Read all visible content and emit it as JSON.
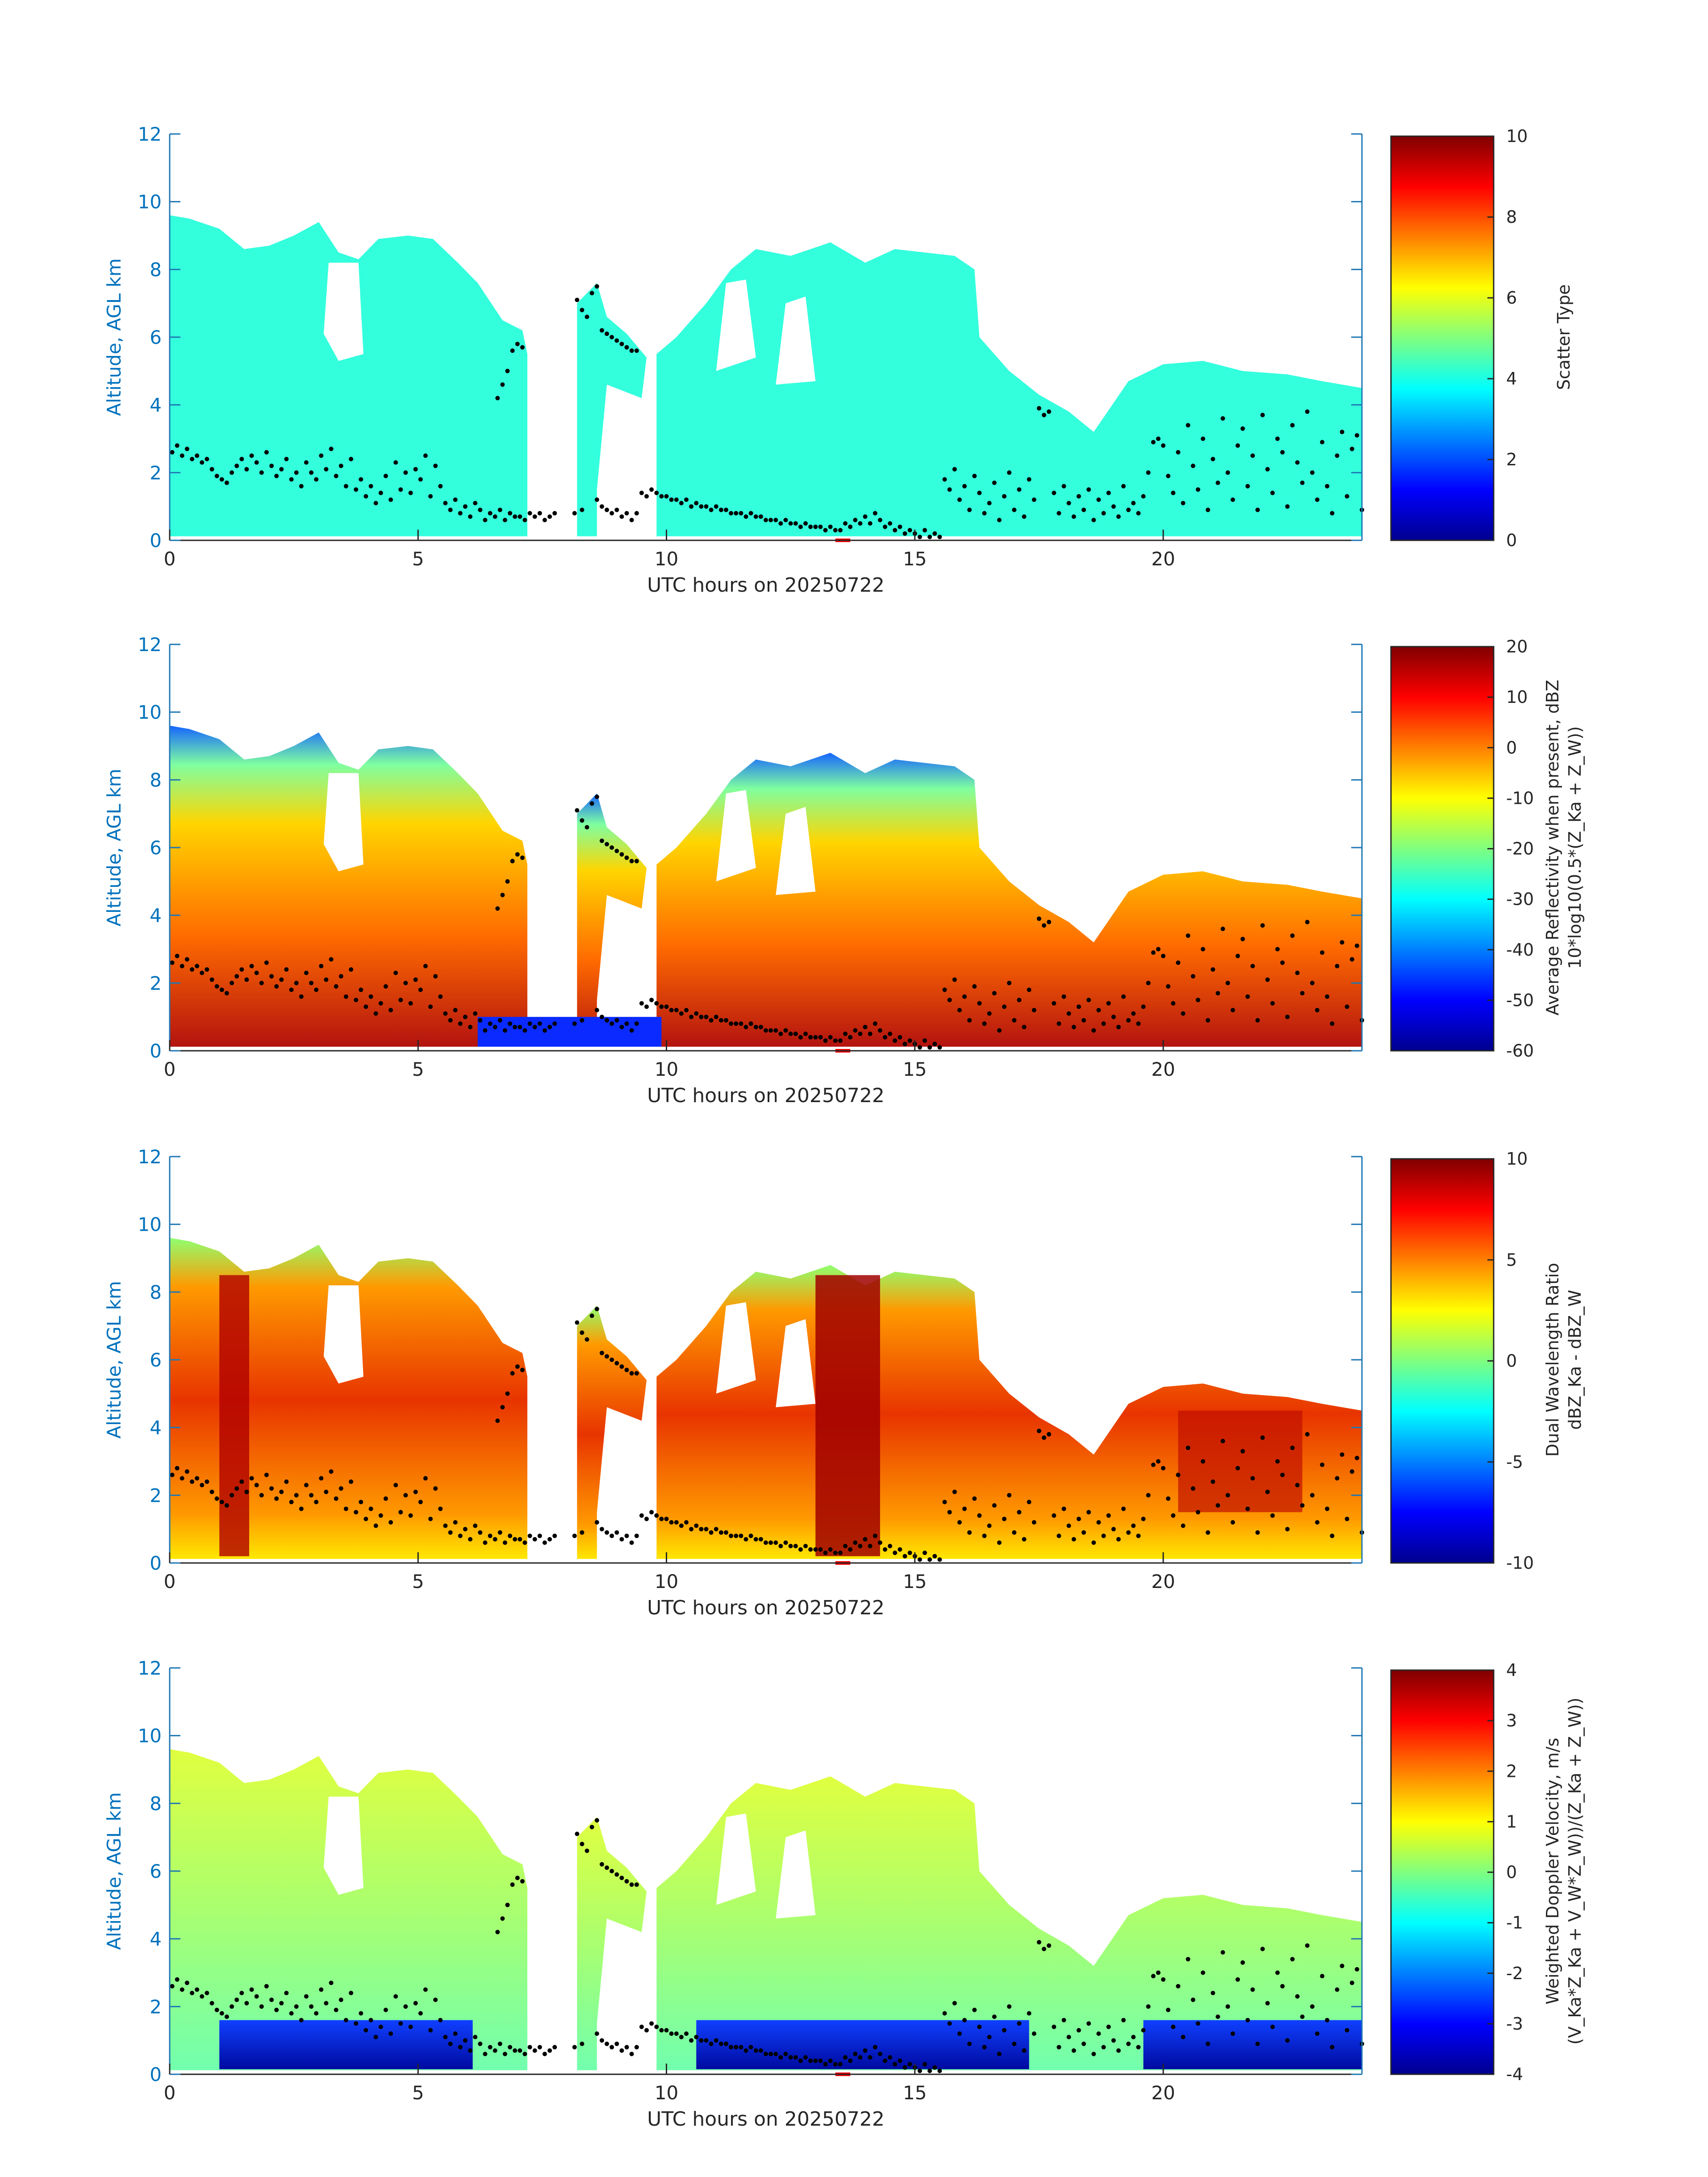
{
  "chart_data": [
    {
      "type": "heatmap",
      "xlabel": "UTC hours on 20250722",
      "ylabel": "Altitude, AGL km",
      "xlim": [
        0,
        24
      ],
      "ylim": [
        0,
        12
      ],
      "xticks": [
        "0",
        "5",
        "10",
        "15",
        "20"
      ],
      "yticks": [
        "0",
        "2",
        "4",
        "6",
        "8",
        "10",
        "12"
      ],
      "colorbar": {
        "label_lines": [
          "Scatter Type"
        ],
        "ticks": [
          "0",
          "2",
          "4",
          "6",
          "8",
          "10"
        ],
        "range": [
          0,
          10
        ],
        "colormap": "jet"
      },
      "dominant_value": 4
    },
    {
      "type": "heatmap",
      "xlabel": "UTC hours on 20250722",
      "ylabel": "Altitude, AGL km",
      "xlim": [
        0,
        24
      ],
      "ylim": [
        0,
        12
      ],
      "xticks": [
        "0",
        "5",
        "10",
        "15",
        "20"
      ],
      "yticks": [
        "0",
        "2",
        "4",
        "6",
        "8",
        "10",
        "12"
      ],
      "colorbar": {
        "label_lines": [
          "Average Reflectivity when present, dBZ",
          "10*log10(0.5*(Z_Ka + Z_W))"
        ],
        "ticks": [
          "-60",
          "-50",
          "-40",
          "-30",
          "-20",
          "-10",
          "0",
          "10",
          "20"
        ],
        "range": [
          -60,
          20
        ],
        "colormap": "jet"
      }
    },
    {
      "type": "heatmap",
      "xlabel": "UTC hours on 20250722",
      "ylabel": "Altitude, AGL km",
      "xlim": [
        0,
        24
      ],
      "ylim": [
        0,
        12
      ],
      "xticks": [
        "0",
        "5",
        "10",
        "15",
        "20"
      ],
      "yticks": [
        "0",
        "2",
        "4",
        "6",
        "8",
        "10",
        "12"
      ],
      "colorbar": {
        "label_lines": [
          "Dual Wavelength Ratio",
          "dBZ_Ka - dBZ_W"
        ],
        "ticks": [
          "-10",
          "-5",
          "0",
          "5",
          "10"
        ],
        "range": [
          -10,
          10
        ],
        "colormap": "jet"
      }
    },
    {
      "type": "heatmap",
      "xlabel": "UTC hours on 20250722",
      "ylabel": "Altitude, AGL km",
      "xlim": [
        0,
        24
      ],
      "ylim": [
        0,
        12
      ],
      "xticks": [
        "0",
        "5",
        "10",
        "15",
        "20"
      ],
      "yticks": [
        "0",
        "2",
        "4",
        "6",
        "8",
        "10",
        "12"
      ],
      "colorbar": {
        "label_lines": [
          "Weighted Doppler Velocity, m/s",
          "(V_Ka*Z_Ka + V_W*Z_W))/(Z_Ka + Z_W))"
        ],
        "ticks": [
          "-4",
          "-3",
          "-2",
          "-1",
          "0",
          "1",
          "2",
          "3",
          "4"
        ],
        "range": [
          -4,
          4
        ],
        "colormap": "jet"
      }
    }
  ],
  "cloud_base_points": [
    [
      0.05,
      2.6
    ],
    [
      0.15,
      2.8
    ],
    [
      0.25,
      2.5
    ],
    [
      0.35,
      2.7
    ],
    [
      0.45,
      2.4
    ],
    [
      0.55,
      2.5
    ],
    [
      0.65,
      2.3
    ],
    [
      0.75,
      2.4
    ],
    [
      0.85,
      2.1
    ],
    [
      0.95,
      1.9
    ],
    [
      1.05,
      1.8
    ],
    [
      1.15,
      1.7
    ],
    [
      1.25,
      2.0
    ],
    [
      1.35,
      2.2
    ],
    [
      1.45,
      2.4
    ],
    [
      1.55,
      2.1
    ],
    [
      1.65,
      2.5
    ],
    [
      1.75,
      2.3
    ],
    [
      1.85,
      2.0
    ],
    [
      1.95,
      2.6
    ],
    [
      2.05,
      2.2
    ],
    [
      2.15,
      1.9
    ],
    [
      2.25,
      2.1
    ],
    [
      2.35,
      2.4
    ],
    [
      2.45,
      1.8
    ],
    [
      2.55,
      2.0
    ],
    [
      2.65,
      1.6
    ],
    [
      2.75,
      2.3
    ],
    [
      2.85,
      2.0
    ],
    [
      2.95,
      1.8
    ],
    [
      3.05,
      2.5
    ],
    [
      3.15,
      2.1
    ],
    [
      3.25,
      2.7
    ],
    [
      3.35,
      1.9
    ],
    [
      3.45,
      2.2
    ],
    [
      3.55,
      1.6
    ],
    [
      3.65,
      2.4
    ],
    [
      3.75,
      1.5
    ],
    [
      3.85,
      1.8
    ],
    [
      3.95,
      1.3
    ],
    [
      4.05,
      1.6
    ],
    [
      4.15,
      1.1
    ],
    [
      4.25,
      1.4
    ],
    [
      4.35,
      1.9
    ],
    [
      4.45,
      1.2
    ],
    [
      4.55,
      2.3
    ],
    [
      4.65,
      1.5
    ],
    [
      4.75,
      2.0
    ],
    [
      4.85,
      1.4
    ],
    [
      4.95,
      2.1
    ],
    [
      5.05,
      1.8
    ],
    [
      5.15,
      2.5
    ],
    [
      5.25,
      1.3
    ],
    [
      5.35,
      2.2
    ],
    [
      5.45,
      1.6
    ],
    [
      5.55,
      1.1
    ],
    [
      5.65,
      0.9
    ],
    [
      5.75,
      1.2
    ],
    [
      5.85,
      0.8
    ],
    [
      5.95,
      1.0
    ],
    [
      6.05,
      0.7
    ],
    [
      6.15,
      1.1
    ],
    [
      6.25,
      0.9
    ],
    [
      6.35,
      0.6
    ],
    [
      6.45,
      0.8
    ],
    [
      6.55,
      0.7
    ],
    [
      6.65,
      0.9
    ],
    [
      6.75,
      0.6
    ],
    [
      6.85,
      0.8
    ],
    [
      6.95,
      0.7
    ],
    [
      7.05,
      0.7
    ],
    [
      7.15,
      0.6
    ],
    [
      7.25,
      0.8
    ],
    [
      7.35,
      0.7
    ],
    [
      7.45,
      0.8
    ],
    [
      7.55,
      0.6
    ],
    [
      7.65,
      0.7
    ],
    [
      7.75,
      0.8
    ],
    [
      8.15,
      0.8
    ],
    [
      8.3,
      0.9
    ],
    [
      8.6,
      1.2
    ],
    [
      8.7,
      1.0
    ],
    [
      8.8,
      0.9
    ],
    [
      8.9,
      0.8
    ],
    [
      9.0,
      0.9
    ],
    [
      9.1,
      0.7
    ],
    [
      9.2,
      0.8
    ],
    [
      9.3,
      0.6
    ],
    [
      9.4,
      0.8
    ],
    [
      9.5,
      1.4
    ],
    [
      9.6,
      1.3
    ],
    [
      9.7,
      1.5
    ],
    [
      9.8,
      1.4
    ],
    [
      9.9,
      1.3
    ],
    [
      10.0,
      1.3
    ],
    [
      10.1,
      1.2
    ],
    [
      10.2,
      1.2
    ],
    [
      10.3,
      1.1
    ],
    [
      10.4,
      1.2
    ],
    [
      10.5,
      1.0
    ],
    [
      10.6,
      1.1
    ],
    [
      10.7,
      1.0
    ],
    [
      10.8,
      1.0
    ],
    [
      10.9,
      0.9
    ],
    [
      11.0,
      1.0
    ],
    [
      11.1,
      0.9
    ],
    [
      11.2,
      0.9
    ],
    [
      11.3,
      0.8
    ],
    [
      11.4,
      0.8
    ],
    [
      11.5,
      0.8
    ],
    [
      11.6,
      0.7
    ],
    [
      11.7,
      0.8
    ],
    [
      11.8,
      0.7
    ],
    [
      11.9,
      0.7
    ],
    [
      12.0,
      0.6
    ],
    [
      12.1,
      0.6
    ],
    [
      12.2,
      0.6
    ],
    [
      12.3,
      0.5
    ],
    [
      12.4,
      0.6
    ],
    [
      12.5,
      0.5
    ],
    [
      12.6,
      0.5
    ],
    [
      12.7,
      0.4
    ],
    [
      12.8,
      0.5
    ],
    [
      12.9,
      0.4
    ],
    [
      13.0,
      0.4
    ],
    [
      13.1,
      0.4
    ],
    [
      13.2,
      0.3
    ],
    [
      13.3,
      0.4
    ],
    [
      13.4,
      0.3
    ],
    [
      13.5,
      0.3
    ],
    [
      13.6,
      0.5
    ],
    [
      13.7,
      0.4
    ],
    [
      13.8,
      0.6
    ],
    [
      13.9,
      0.5
    ],
    [
      14.0,
      0.7
    ],
    [
      14.1,
      0.5
    ],
    [
      14.2,
      0.8
    ],
    [
      14.3,
      0.6
    ],
    [
      14.4,
      0.4
    ],
    [
      14.5,
      0.5
    ],
    [
      14.6,
      0.3
    ],
    [
      14.7,
      0.4
    ],
    [
      14.8,
      0.2
    ],
    [
      14.9,
      0.3
    ],
    [
      15.0,
      0.2
    ],
    [
      15.1,
      0.1
    ],
    [
      15.2,
      0.3
    ],
    [
      15.3,
      0.1
    ],
    [
      15.4,
      0.2
    ],
    [
      15.5,
      0.1
    ],
    [
      15.6,
      1.8
    ],
    [
      15.7,
      1.5
    ],
    [
      15.8,
      2.1
    ],
    [
      15.9,
      1.2
    ],
    [
      16.0,
      1.6
    ],
    [
      16.1,
      0.9
    ],
    [
      16.2,
      1.9
    ],
    [
      16.3,
      1.4
    ],
    [
      16.4,
      0.8
    ],
    [
      16.5,
      1.1
    ],
    [
      16.6,
      1.7
    ],
    [
      16.7,
      0.6
    ],
    [
      16.8,
      1.3
    ],
    [
      16.9,
      2.0
    ],
    [
      17.0,
      0.9
    ],
    [
      17.1,
      1.5
    ],
    [
      17.2,
      0.7
    ],
    [
      17.3,
      1.8
    ],
    [
      17.4,
      1.2
    ],
    [
      17.5,
      3.9
    ],
    [
      17.6,
      3.7
    ],
    [
      17.7,
      3.8
    ],
    [
      17.8,
      1.4
    ],
    [
      17.9,
      0.8
    ],
    [
      18.0,
      1.6
    ],
    [
      18.1,
      1.1
    ],
    [
      18.2,
      0.7
    ],
    [
      18.3,
      1.3
    ],
    [
      18.4,
      0.9
    ],
    [
      18.5,
      1.5
    ],
    [
      18.6,
      0.6
    ],
    [
      18.7,
      1.2
    ],
    [
      18.8,
      0.8
    ],
    [
      18.9,
      1.4
    ],
    [
      19.0,
      1.0
    ],
    [
      19.1,
      0.7
    ],
    [
      19.2,
      1.6
    ],
    [
      19.3,
      0.9
    ],
    [
      19.4,
      1.1
    ],
    [
      19.5,
      0.8
    ],
    [
      19.6,
      1.3
    ],
    [
      19.7,
      2.0
    ],
    [
      19.8,
      2.9
    ],
    [
      19.9,
      3.0
    ],
    [
      20.0,
      2.8
    ],
    [
      20.1,
      1.9
    ],
    [
      20.2,
      1.4
    ],
    [
      20.3,
      2.6
    ],
    [
      20.4,
      1.1
    ],
    [
      20.5,
      3.4
    ],
    [
      20.6,
      2.2
    ],
    [
      20.7,
      1.5
    ],
    [
      20.8,
      3.0
    ],
    [
      20.9,
      0.9
    ],
    [
      21.0,
      2.4
    ],
    [
      21.1,
      1.7
    ],
    [
      21.2,
      3.6
    ],
    [
      21.3,
      2.0
    ],
    [
      21.4,
      1.2
    ],
    [
      21.5,
      2.8
    ],
    [
      21.6,
      3.3
    ],
    [
      21.7,
      1.6
    ],
    [
      21.8,
      2.5
    ],
    [
      21.9,
      0.9
    ],
    [
      22.0,
      3.7
    ],
    [
      22.1,
      2.1
    ],
    [
      22.2,
      1.4
    ],
    [
      22.3,
      3.0
    ],
    [
      22.4,
      2.6
    ],
    [
      22.5,
      1.0
    ],
    [
      22.6,
      3.4
    ],
    [
      22.7,
      2.3
    ],
    [
      22.8,
      1.7
    ],
    [
      22.9,
      3.8
    ],
    [
      23.0,
      2.0
    ],
    [
      23.1,
      1.2
    ],
    [
      23.2,
      2.9
    ],
    [
      23.3,
      1.6
    ],
    [
      23.4,
      0.8
    ],
    [
      23.5,
      2.5
    ],
    [
      23.6,
      3.2
    ],
    [
      23.7,
      1.3
    ],
    [
      23.8,
      2.7
    ],
    [
      23.9,
      3.1
    ],
    [
      24.0,
      0.9
    ],
    [
      6.6,
      4.2
    ],
    [
      6.7,
      4.6
    ],
    [
      6.8,
      5.0
    ],
    [
      6.9,
      5.6
    ],
    [
      7.0,
      5.8
    ],
    [
      7.1,
      5.7
    ],
    [
      8.2,
      7.1
    ],
    [
      8.3,
      6.8
    ],
    [
      8.4,
      6.6
    ],
    [
      8.5,
      7.3
    ],
    [
      8.6,
      7.5
    ],
    [
      8.7,
      6.2
    ],
    [
      8.8,
      6.1
    ],
    [
      8.9,
      6.0
    ],
    [
      9.0,
      5.9
    ],
    [
      9.1,
      5.8
    ],
    [
      9.2,
      5.7
    ],
    [
      9.3,
      5.6
    ],
    [
      9.4,
      5.6
    ]
  ]
}
